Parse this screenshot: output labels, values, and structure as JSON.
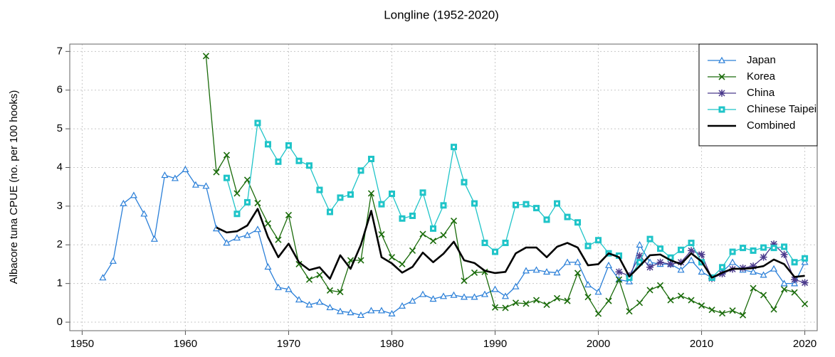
{
  "chart_data": {
    "type": "line",
    "title": "Longline (1952-2020)",
    "y_label": "Albacore tuna CPUE (no. per 100 hooks)",
    "x": [
      1952,
      1953,
      1954,
      1955,
      1956,
      1957,
      1958,
      1959,
      1960,
      1961,
      1962,
      1963,
      1964,
      1965,
      1966,
      1967,
      1968,
      1969,
      1970,
      1971,
      1972,
      1973,
      1974,
      1975,
      1976,
      1977,
      1978,
      1979,
      1980,
      1981,
      1982,
      1983,
      1984,
      1985,
      1986,
      1987,
      1988,
      1989,
      1990,
      1991,
      1992,
      1993,
      1994,
      1995,
      1996,
      1997,
      1998,
      1999,
      2000,
      2001,
      2002,
      2003,
      2004,
      2005,
      2006,
      2007,
      2008,
      2009,
      2010,
      2011,
      2012,
      2013,
      2014,
      2015,
      2016,
      2017,
      2018,
      2019,
      2020
    ],
    "series": [
      {
        "name": "Japan",
        "color": "#2a7fd8",
        "marker": "triangle",
        "width": 1.3,
        "values": [
          1.15,
          1.58,
          3.07,
          3.28,
          2.8,
          2.15,
          3.8,
          3.72,
          3.95,
          3.55,
          3.52,
          2.42,
          2.05,
          2.18,
          2.25,
          2.4,
          1.43,
          0.9,
          0.85,
          0.58,
          0.45,
          0.52,
          0.38,
          0.28,
          0.25,
          0.18,
          0.3,
          0.3,
          0.22,
          0.42,
          0.55,
          0.72,
          0.6,
          0.67,
          0.7,
          0.65,
          0.65,
          0.72,
          0.85,
          0.67,
          0.92,
          1.33,
          1.35,
          1.3,
          1.28,
          1.55,
          1.55,
          0.97,
          0.78,
          1.47,
          1.1,
          1.05,
          2.0,
          1.55,
          1.5,
          1.5,
          1.35,
          1.6,
          1.3,
          1.15,
          1.3,
          1.55,
          1.35,
          1.3,
          1.22,
          1.38,
          1.0,
          1.0,
          1.55
        ]
      },
      {
        "name": "Korea",
        "color": "#1a6b0a",
        "marker": "cross",
        "width": 1.3,
        "values": [
          null,
          null,
          null,
          null,
          null,
          null,
          null,
          null,
          null,
          null,
          6.88,
          3.88,
          4.32,
          3.33,
          3.68,
          3.08,
          2.55,
          2.13,
          2.77,
          1.5,
          1.1,
          1.22,
          0.82,
          0.78,
          1.6,
          1.6,
          3.33,
          2.27,
          1.68,
          1.5,
          1.85,
          2.28,
          2.1,
          2.25,
          2.62,
          1.07,
          1.28,
          1.3,
          0.38,
          0.37,
          0.5,
          0.48,
          0.57,
          0.45,
          0.62,
          0.55,
          1.27,
          0.65,
          0.22,
          0.55,
          1.1,
          0.28,
          0.5,
          0.83,
          0.95,
          0.57,
          0.68,
          0.57,
          0.43,
          0.32,
          0.23,
          0.3,
          0.18,
          0.88,
          0.7,
          0.33,
          0.85,
          0.77,
          0.47
        ]
      },
      {
        "name": "China",
        "color": "#4b3a8c",
        "marker": "asterisk",
        "width": 1.3,
        "values": [
          null,
          null,
          null,
          null,
          null,
          null,
          null,
          null,
          null,
          null,
          null,
          null,
          null,
          null,
          null,
          null,
          null,
          null,
          null,
          null,
          null,
          null,
          null,
          null,
          null,
          null,
          null,
          null,
          null,
          null,
          null,
          null,
          null,
          null,
          null,
          null,
          null,
          null,
          null,
          null,
          null,
          null,
          null,
          null,
          null,
          null,
          null,
          null,
          null,
          null,
          1.3,
          1.2,
          1.72,
          1.42,
          1.55,
          1.5,
          1.55,
          1.85,
          1.75,
          1.13,
          1.25,
          1.37,
          1.4,
          1.45,
          1.68,
          2.02,
          1.75,
          1.1,
          1.02
        ]
      },
      {
        "name": "Chinese Taipei",
        "color": "#1fc4c8",
        "marker": "square",
        "width": 1.3,
        "values": [
          null,
          null,
          null,
          null,
          null,
          null,
          null,
          null,
          null,
          null,
          null,
          null,
          3.73,
          2.8,
          3.1,
          5.15,
          4.6,
          4.15,
          4.57,
          4.17,
          4.05,
          3.42,
          2.85,
          3.22,
          3.3,
          3.92,
          4.22,
          3.05,
          3.32,
          2.68,
          2.75,
          3.35,
          2.42,
          3.02,
          4.53,
          3.62,
          3.07,
          2.05,
          1.82,
          2.05,
          3.03,
          3.05,
          2.95,
          2.65,
          3.07,
          2.72,
          2.58,
          1.97,
          2.12,
          1.78,
          1.72,
          1.15,
          1.55,
          2.15,
          1.9,
          1.67,
          1.87,
          2.05,
          1.55,
          1.15,
          1.42,
          1.82,
          1.92,
          1.85,
          1.93,
          1.92,
          1.95,
          1.55,
          1.65
        ]
      },
      {
        "name": "Combined",
        "color": "#000000",
        "marker": "none",
        "width": 2.6,
        "values": [
          null,
          null,
          null,
          null,
          null,
          null,
          null,
          null,
          null,
          null,
          null,
          2.45,
          2.32,
          2.35,
          2.5,
          2.93,
          2.2,
          1.68,
          2.03,
          1.55,
          1.35,
          1.42,
          1.12,
          1.73,
          1.38,
          2.0,
          2.88,
          1.68,
          1.52,
          1.28,
          1.43,
          1.8,
          1.55,
          1.77,
          2.08,
          1.6,
          1.53,
          1.33,
          1.27,
          1.3,
          1.78,
          1.93,
          1.93,
          1.68,
          1.95,
          2.05,
          1.93,
          1.47,
          1.5,
          1.78,
          1.68,
          1.18,
          1.45,
          1.73,
          1.75,
          1.6,
          1.5,
          1.78,
          1.57,
          1.15,
          1.28,
          1.38,
          1.38,
          1.4,
          1.45,
          1.62,
          1.5,
          1.17,
          1.2
        ]
      }
    ],
    "xlim": [
      1948.8,
      2021.2
    ],
    "ylim": [
      -0.22,
      7.19
    ],
    "xticks": [
      1950,
      1960,
      1970,
      1980,
      1990,
      2000,
      2010,
      2020
    ],
    "yticks": [
      0,
      1,
      2,
      3,
      4,
      5,
      6,
      7
    ],
    "grid": true,
    "legend": "top-right"
  }
}
